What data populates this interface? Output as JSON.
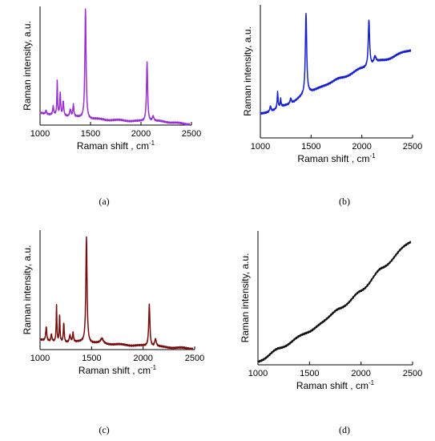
{
  "figure": {
    "panels": [
      {
        "id": "a",
        "caption": "(a)",
        "chart_data": {
          "type": "line",
          "xlabel": "Raman shift , cm",
          "xlabel_sup": "-1",
          "ylabel": "Raman intensity, a.u.",
          "xlim": [
            1000,
            2500
          ],
          "ylim": [
            0,
            100
          ],
          "y_ticks_labeled": false,
          "xticks": [
            "1000",
            "1500",
            "2000",
            "2500"
          ],
          "grid": false,
          "color": "#9b30d9",
          "baseline": [
            [
              1000,
              10
            ],
            [
              1200,
              8
            ],
            [
              1500,
              5
            ],
            [
              1800,
              4
            ],
            [
              2000,
              3
            ],
            [
              2200,
              3
            ],
            [
              2450,
              1
            ]
          ],
          "peaks": [
            [
              1060,
              3,
              6
            ],
            [
              1130,
              7,
              6
            ],
            [
              1170,
              28,
              4
            ],
            [
              1200,
              18,
              5
            ],
            [
              1230,
              12,
              6
            ],
            [
              1300,
              6,
              8
            ],
            [
              1330,
              10,
              6
            ],
            [
              1450,
              92,
              7
            ],
            [
              2060,
              50,
              7
            ],
            [
              2120,
              4,
              10
            ]
          ]
        }
      },
      {
        "id": "b",
        "caption": "(b)",
        "chart_data": {
          "type": "line",
          "xlabel": "Raman shift , cm",
          "xlabel_sup": "-1",
          "ylabel": "Raman intensity, a.u.",
          "xlim": [
            1000,
            2500
          ],
          "ylim": [
            0,
            100
          ],
          "y_ticks_labeled": false,
          "xticks": [
            "1000",
            "1500",
            "2000",
            "2500"
          ],
          "grid": false,
          "color": "#1520d6",
          "baseline": [
            [
              1000,
              18
            ],
            [
              1100,
              20
            ],
            [
              1300,
              26
            ],
            [
              1500,
              35
            ],
            [
              1800,
              45
            ],
            [
              2000,
              52
            ],
            [
              2200,
              58
            ],
            [
              2480,
              66
            ]
          ],
          "peaks": [
            [
              1100,
              4,
              8
            ],
            [
              1170,
              12,
              5
            ],
            [
              1200,
              6,
              5
            ],
            [
              1300,
              4,
              8
            ],
            [
              1450,
              60,
              8
            ],
            [
              2070,
              35,
              8
            ],
            [
              2130,
              5,
              12
            ]
          ]
        }
      },
      {
        "id": "c",
        "caption": "(c)",
        "chart_data": {
          "type": "line",
          "xlabel": "Raman shift , cm",
          "xlabel_sup": "-1",
          "ylabel": "Raman intensity, a.u.",
          "xlim": [
            1000,
            2500
          ],
          "ylim": [
            0,
            100
          ],
          "y_ticks_labeled": false,
          "xticks": [
            "1000",
            "1500",
            "2000",
            "2500"
          ],
          "grid": false,
          "color": "#7a0c0c",
          "baseline": [
            [
              1000,
              8
            ],
            [
              1200,
              6
            ],
            [
              1400,
              6
            ],
            [
              1600,
              5
            ],
            [
              1800,
              4
            ],
            [
              2000,
              3
            ],
            [
              2200,
              2
            ],
            [
              2480,
              1
            ]
          ],
          "peaks": [
            [
              1060,
              12,
              6
            ],
            [
              1110,
              6,
              6
            ],
            [
              1160,
              30,
              4
            ],
            [
              1190,
              22,
              4
            ],
            [
              1230,
              16,
              5
            ],
            [
              1290,
              6,
              8
            ],
            [
              1320,
              8,
              6
            ],
            [
              1450,
              88,
              7
            ],
            [
              1600,
              4,
              15
            ],
            [
              2060,
              35,
              7
            ],
            [
              2120,
              6,
              10
            ]
          ]
        }
      },
      {
        "id": "d",
        "caption": "(d)",
        "chart_data": {
          "type": "line",
          "xlabel": "Raman shift , cm",
          "xlabel_sup": "-1",
          "ylabel": "Raman intensity, a.u.",
          "xlim": [
            1000,
            2500
          ],
          "ylim": [
            0,
            100
          ],
          "y_ticks_labeled": false,
          "xticks": [
            "1000",
            "1500",
            "2000",
            "2500"
          ],
          "grid": false,
          "color": "#111111",
          "baseline": [
            [
              1000,
              2
            ],
            [
              1200,
              12
            ],
            [
              1500,
              25
            ],
            [
              1800,
              42
            ],
            [
              2000,
              55
            ],
            [
              2200,
              72
            ],
            [
              2480,
              92
            ]
          ],
          "peaks": []
        }
      }
    ]
  }
}
